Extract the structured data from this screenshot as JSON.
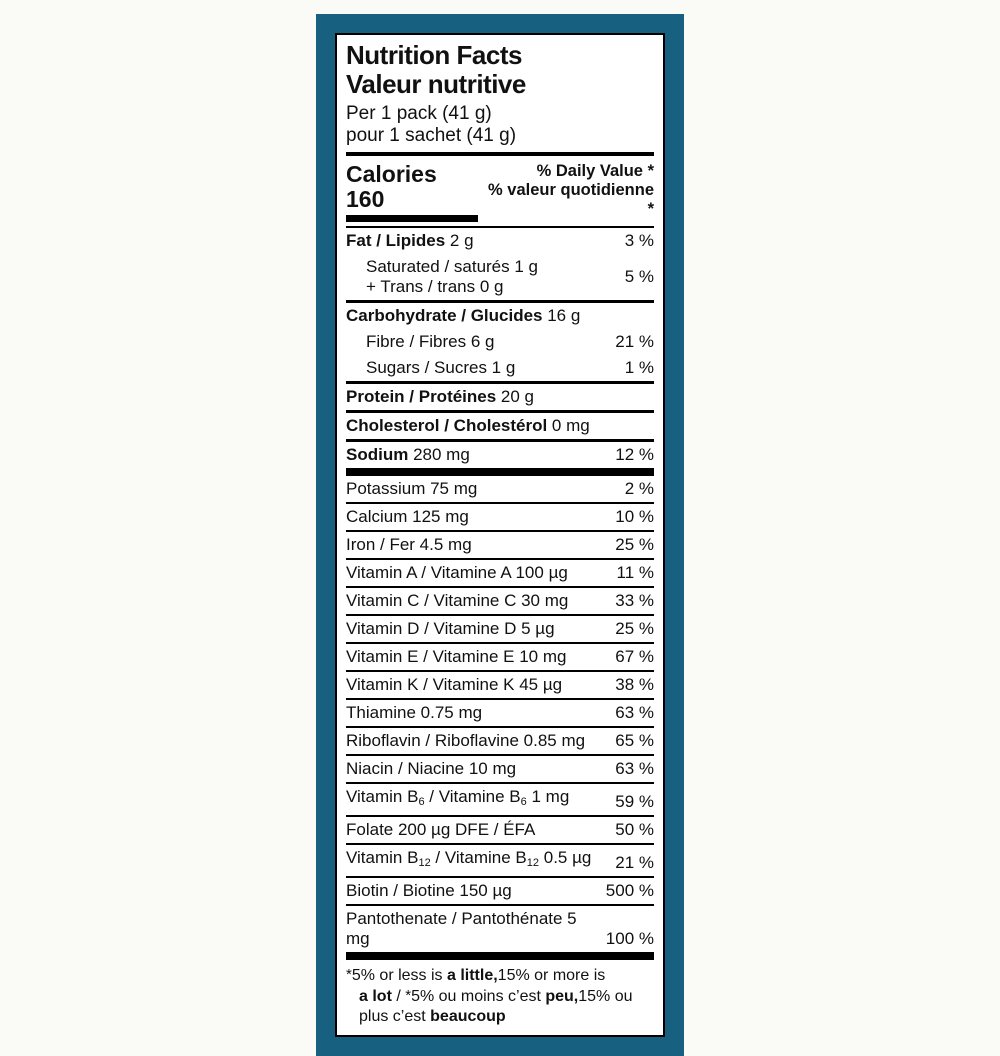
{
  "colors": {
    "panel_bg": "#17607f",
    "label_bg": "#ffffff",
    "text": "#111111",
    "page_bg": "#fafaf6"
  },
  "header": {
    "title_en": "Nutrition Facts",
    "title_fr": "Valeur nutritive",
    "serving_en": "Per 1 pack (41 g)",
    "serving_fr": "pour 1 sachet (41 g)"
  },
  "calories": {
    "label": "Calories",
    "value": "160"
  },
  "daily_value_header": {
    "line1": "% Daily Value *",
    "line2": "% valeur quotidienne *"
  },
  "rows": [
    {
      "name": "row-fat",
      "segs": [
        {
          "t": "Fat / Lipides",
          "b": 1
        },
        {
          "t": " 2 g"
        }
      ],
      "pct": "3 %",
      "rule": "none"
    },
    {
      "name": "row-saturated-trans",
      "lines": [
        [
          {
            "t": "Saturated / saturés 1 g"
          }
        ],
        [
          {
            "t": "+ Trans / trans 0 g"
          }
        ]
      ],
      "pct": "5 %",
      "indent": true,
      "rule": "med"
    },
    {
      "name": "row-carbohydrate",
      "segs": [
        {
          "t": "Carbohydrate / Glucides",
          "b": 1
        },
        {
          "t": " 16 g"
        }
      ],
      "pct": "",
      "rule": "none"
    },
    {
      "name": "row-fibre",
      "segs": [
        {
          "t": "Fibre / Fibres 6 g"
        }
      ],
      "pct": "21 %",
      "indent": true,
      "rule": "none"
    },
    {
      "name": "row-sugars",
      "segs": [
        {
          "t": "Sugars / Sucres 1 g"
        }
      ],
      "pct": "1 %",
      "indent": true,
      "rule": "med"
    },
    {
      "name": "row-protein",
      "segs": [
        {
          "t": "Protein / Protéines",
          "b": 1
        },
        {
          "t": " 20 g"
        }
      ],
      "pct": "",
      "rule": "med"
    },
    {
      "name": "row-cholesterol",
      "segs": [
        {
          "t": "Cholesterol / Cholestérol",
          "b": 1
        },
        {
          "t": " 0 mg"
        }
      ],
      "pct": "",
      "rule": "med"
    },
    {
      "name": "row-sodium",
      "segs": [
        {
          "t": "Sodium",
          "b": 1
        },
        {
          "t": " 280 mg"
        }
      ],
      "pct": "12 %",
      "rule": "thick"
    },
    {
      "name": "row-potassium",
      "segs": [
        {
          "t": "Potassium 75 mg"
        }
      ],
      "pct": "2 %",
      "rule": "thin"
    },
    {
      "name": "row-calcium",
      "segs": [
        {
          "t": "Calcium 125 mg"
        }
      ],
      "pct": "10 %",
      "rule": "thin"
    },
    {
      "name": "row-iron",
      "segs": [
        {
          "t": "Iron / Fer 4.5 mg"
        }
      ],
      "pct": "25 %",
      "rule": "thin"
    },
    {
      "name": "row-vitamin-a",
      "segs": [
        {
          "t": "Vitamin A / Vitamine A 100 µg"
        }
      ],
      "pct": "11 %",
      "rule": "thin"
    },
    {
      "name": "row-vitamin-c",
      "segs": [
        {
          "t": "Vitamin C / Vitamine C 30 mg"
        }
      ],
      "pct": "33 %",
      "rule": "thin"
    },
    {
      "name": "row-vitamin-d",
      "segs": [
        {
          "t": "Vitamin D / Vitamine D 5 µg"
        }
      ],
      "pct": "25 %",
      "rule": "thin"
    },
    {
      "name": "row-vitamin-e",
      "segs": [
        {
          "t": "Vitamin E / Vitamine E 10 mg"
        }
      ],
      "pct": "67 %",
      "rule": "thin"
    },
    {
      "name": "row-vitamin-k",
      "segs": [
        {
          "t": "Vitamin K / Vitamine K 45 µg"
        }
      ],
      "pct": "38 %",
      "rule": "thin"
    },
    {
      "name": "row-thiamine",
      "segs": [
        {
          "t": "Thiamine 0.75 mg"
        }
      ],
      "pct": "63 %",
      "rule": "thin"
    },
    {
      "name": "row-riboflavin",
      "segs": [
        {
          "t": "Riboflavin / Riboflavine 0.85 mg"
        }
      ],
      "pct": "65 %",
      "rule": "thin"
    },
    {
      "name": "row-niacin",
      "segs": [
        {
          "t": "Niacin / Niacine 10 mg"
        }
      ],
      "pct": "63 %",
      "rule": "thin"
    },
    {
      "name": "row-vitamin-b6",
      "segs": [
        {
          "t": "Vitamin B"
        },
        {
          "t": "6",
          "sub": 1
        },
        {
          "t": " / Vitamine B"
        },
        {
          "t": "6",
          "sub": 1
        },
        {
          "t": " 1 mg"
        }
      ],
      "pct": "59 %",
      "rule": "thin"
    },
    {
      "name": "row-folate",
      "segs": [
        {
          "t": "Folate 200 µg DFE / ÉFA"
        }
      ],
      "pct": "50 %",
      "rule": "thin"
    },
    {
      "name": "row-vitamin-b12",
      "segs": [
        {
          "t": "Vitamin B"
        },
        {
          "t": "12",
          "sub": 1
        },
        {
          "t": " / Vitamine B"
        },
        {
          "t": "12",
          "sub": 1
        },
        {
          "t": " 0.5 µg"
        }
      ],
      "pct": "21 %",
      "rule": "thin"
    },
    {
      "name": "row-biotin",
      "segs": [
        {
          "t": "Biotin / Biotine 150 µg"
        }
      ],
      "pct": "500 %",
      "rule": "thin"
    },
    {
      "name": "row-pantothenate",
      "segs": [
        {
          "t": "Pantothenate / Pantothénate 5 mg"
        }
      ],
      "pct": "100 %",
      "rule": "thick"
    }
  ],
  "footnote": {
    "lines": [
      [
        {
          "t": "*",
          "star": 1
        },
        {
          "t": "5% or less is "
        },
        {
          "t": "a little,",
          "b": 1
        },
        {
          "t": "15% or more is"
        }
      ],
      [
        {
          "t": "a lot",
          "b": 1
        },
        {
          "t": " / "
        },
        {
          "t": "*",
          "star": 1
        },
        {
          "t": "5% ou moins c’est "
        },
        {
          "t": "peu,",
          "b": 1
        },
        {
          "t": "15% ou"
        }
      ],
      [
        {
          "t": "plus c’est "
        },
        {
          "t": "beaucoup",
          "b": 1
        }
      ]
    ]
  }
}
